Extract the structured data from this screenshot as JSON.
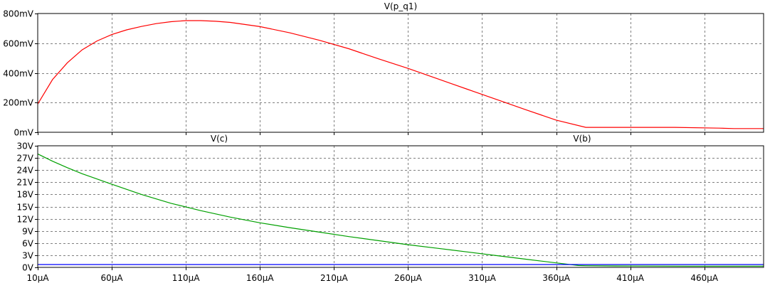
{
  "colors": {
    "background": "#ffffff",
    "frame": "#000000",
    "grid": "#808080",
    "pane_separator": "#808080",
    "tick_text": "#000000"
  },
  "chart_data": [
    {
      "type": "line",
      "pane": "top",
      "x_tick_labels": [
        "10µA",
        "60µA",
        "110µA",
        "160µA",
        "210µA",
        "260µA",
        "310µA",
        "360µA",
        "410µA",
        "460µA"
      ],
      "xlim": [
        10,
        500
      ],
      "x_unit": "µA",
      "ylim": [
        0,
        800
      ],
      "y_ticks": [
        0,
        200,
        400,
        600,
        800
      ],
      "y_tick_labels": [
        "0mV",
        "200mV",
        "400mV",
        "600mV",
        "800mV"
      ],
      "y_unit": "mV",
      "grid": true,
      "series": [
        {
          "name": "V(p_q1)",
          "color": "#ff0000",
          "x": [
            10,
            20,
            30,
            40,
            50,
            60,
            70,
            80,
            90,
            100,
            110,
            120,
            130,
            140,
            160,
            180,
            200,
            220,
            240,
            260,
            280,
            300,
            320,
            340,
            360,
            380,
            400,
            420,
            440,
            470,
            480,
            500
          ],
          "y": [
            190,
            355,
            468,
            555,
            615,
            658,
            690,
            713,
            732,
            745,
            752,
            752,
            748,
            740,
            712,
            670,
            620,
            563,
            495,
            430,
            360,
            290,
            220,
            150,
            82,
            33,
            33,
            33,
            33,
            28,
            25,
            25
          ]
        }
      ]
    },
    {
      "type": "line",
      "pane": "bottom",
      "x_tick_labels": [
        "10µA",
        "60µA",
        "110µA",
        "160µA",
        "210µA",
        "260µA",
        "310µA",
        "360µA",
        "410µA",
        "460µA"
      ],
      "xlim": [
        10,
        500
      ],
      "x_unit": "µA",
      "ylim": [
        0,
        30
      ],
      "y_ticks": [
        0,
        3,
        6,
        9,
        12,
        15,
        18,
        21,
        24,
        27,
        30
      ],
      "y_tick_labels": [
        "0V",
        "3V",
        "6V",
        "9V",
        "12V",
        "15V",
        "18V",
        "21V",
        "24V",
        "27V",
        "30V"
      ],
      "y_unit": "V",
      "grid": true,
      "series": [
        {
          "name": "V(c)",
          "color": "#00a000",
          "x": [
            10,
            20,
            30,
            40,
            50,
            60,
            80,
            100,
            120,
            140,
            160,
            180,
            200,
            220,
            240,
            260,
            280,
            300,
            320,
            340,
            360,
            375,
            380,
            400,
            450,
            500
          ],
          "y": [
            28,
            26.2,
            24.6,
            23.1,
            21.8,
            20.5,
            18,
            15.8,
            14,
            12.4,
            11,
            9.8,
            8.7,
            7.6,
            6.6,
            5.6,
            4.7,
            3.8,
            2.9,
            2,
            1.1,
            0.45,
            0.4,
            0.35,
            0.3,
            0.3
          ]
        },
        {
          "name": "V(b)",
          "color": "#0000ff",
          "x": [
            10,
            100,
            200,
            300,
            400,
            500
          ],
          "y": [
            0.7,
            0.7,
            0.7,
            0.7,
            0.7,
            0.7
          ]
        }
      ]
    }
  ]
}
